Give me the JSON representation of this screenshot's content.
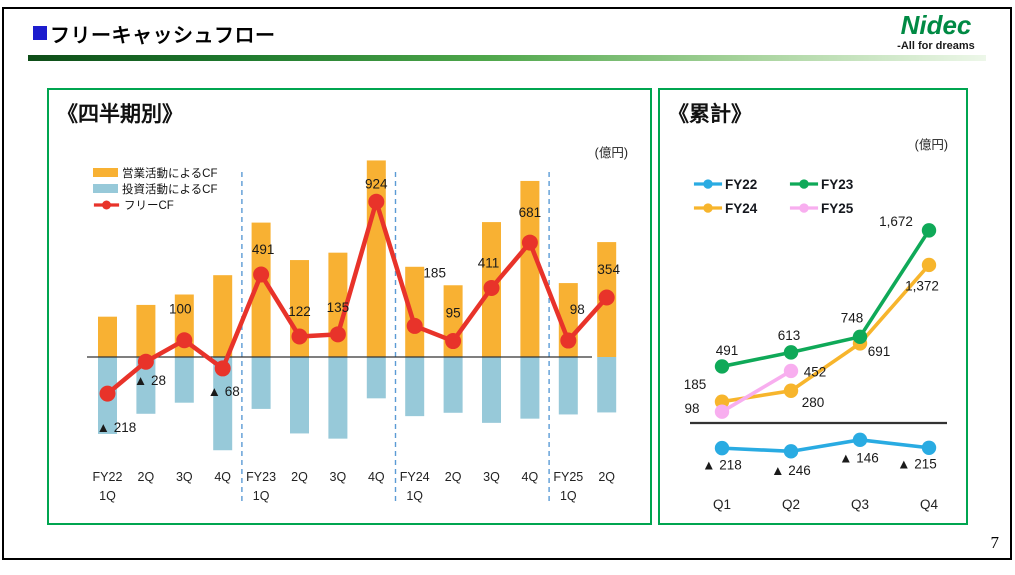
{
  "slide": {
    "title": "フリーキャッシュフロー",
    "page_number": "7",
    "logo": {
      "brand": "Nidec",
      "tagline": "-All for dreams"
    }
  },
  "colors": {
    "title_bullet": "#1D1DCE",
    "panel_border": "#00A550",
    "separator": "#5B9BD5",
    "axis": "#333333"
  },
  "chart_data": [
    {
      "type": "bar",
      "title": "《四半期別》",
      "unit": "(億円)",
      "categories": [
        [
          "FY22",
          "1Q"
        ],
        [
          "2Q"
        ],
        [
          "3Q"
        ],
        [
          "4Q"
        ],
        [
          "FY23",
          "1Q"
        ],
        [
          "2Q"
        ],
        [
          "3Q"
        ],
        [
          "4Q"
        ],
        [
          "FY24",
          "1Q"
        ],
        [
          "2Q"
        ],
        [
          "3Q"
        ],
        [
          "4Q"
        ],
        [
          "FY25",
          "1Q"
        ],
        [
          "2Q"
        ]
      ],
      "fiscal_year_separators_after": [
        3,
        7,
        11
      ],
      "negative_marker": "▲",
      "ylim": [
        -600,
        1250
      ],
      "series": [
        {
          "name": "営業活動によるCF",
          "type": "bar",
          "color": "#F8B133",
          "values_estimated": true,
          "values": [
            240,
            310,
            372,
            487,
            800,
            577,
            621,
            1170,
            537,
            427,
            803,
            1048,
            440,
            684
          ]
        },
        {
          "name": "投資活動によるCF",
          "type": "bar",
          "color": "#97C9D9",
          "values_estimated": true,
          "values": [
            -458,
            -338,
            -272,
            -555,
            -309,
            -455,
            -486,
            -246,
            -352,
            -332,
            -392,
            -367,
            -342,
            -330
          ]
        },
        {
          "name": "フリーCF",
          "type": "line",
          "color": "#E8332A",
          "values": [
            -218,
            -28,
            100,
            -68,
            491,
            122,
            135,
            924,
            185,
            95,
            411,
            681,
            98,
            354
          ],
          "labels": [
            "▲ 218",
            "▲ 28",
            "100",
            "▲ 68",
            "491",
            "122",
            "135",
            "924",
            "185",
            "95",
            "411",
            "681",
            "98",
            "354"
          ],
          "label_offsets": [
            [
              9,
              34
            ],
            [
              4,
              19
            ],
            [
              -4,
              -31
            ],
            [
              1,
              23
            ],
            [
              2,
              -25
            ],
            [
              0,
              -25
            ],
            [
              0,
              -27
            ],
            [
              0,
              -18
            ],
            [
              20,
              -53
            ],
            [
              0,
              -28
            ],
            [
              -3,
              -25
            ],
            [
              0,
              -30
            ],
            [
              9,
              -31
            ],
            [
              2,
              -28
            ]
          ]
        }
      ]
    },
    {
      "type": "line",
      "title": "《累計》",
      "unit": "(億円)",
      "categories": [
        "Q1",
        "Q2",
        "Q3",
        "Q4"
      ],
      "ylim": [
        -300,
        1750
      ],
      "draw_order": [
        0,
        2,
        3,
        1
      ],
      "series": [
        {
          "name": "FY22",
          "color": "#29ABE2",
          "values": [
            -218,
            -246,
            -146,
            -215
          ],
          "labels": [
            "▲ 218",
            "▲ 246",
            "▲ 146",
            "▲ 215"
          ],
          "label_offsets": [
            [
              0,
              17
            ],
            [
              0,
              19
            ],
            [
              -1,
              18
            ],
            [
              -12,
              16
            ]
          ]
        },
        {
          "name": "FY23",
          "color": "#0FA958",
          "values": [
            491,
            613,
            748,
            1672
          ],
          "labels": [
            "491",
            "613",
            "748",
            "1,672"
          ],
          "label_offsets": [
            [
              5,
              -16
            ],
            [
              -2,
              -17
            ],
            [
              -8,
              -19
            ],
            [
              -33,
              -9
            ]
          ]
        },
        {
          "name": "FY24",
          "color": "#F7B52C",
          "values": [
            185,
            280,
            691,
            1372
          ],
          "labels": [
            "185",
            "280",
            "691",
            "1,372"
          ],
          "label_offsets": [
            [
              -27,
              -17
            ],
            [
              22,
              12
            ],
            [
              19,
              8
            ],
            [
              -7,
              21
            ]
          ]
        },
        {
          "name": "FY25",
          "color": "#F8AEEF",
          "values": [
            98,
            452
          ],
          "labels": [
            "98",
            "452"
          ],
          "label_offsets": [
            [
              -30,
              -3
            ],
            [
              24,
              1
            ]
          ]
        }
      ]
    }
  ]
}
